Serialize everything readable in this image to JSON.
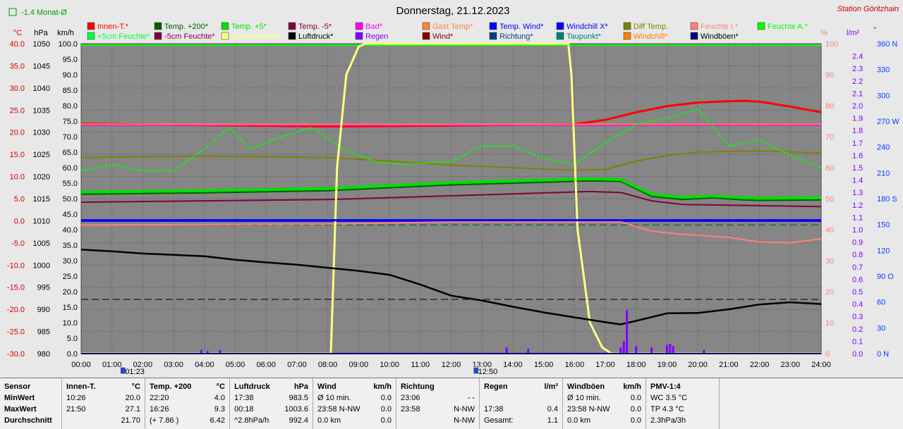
{
  "header": {
    "title": "Donnerstag, 21.12.2023",
    "station": "Station Göritzhain",
    "monat_label": "-1.4 Monat-Ø"
  },
  "axes_units": {
    "celsius": "°C",
    "hpa": "hPa",
    "kmh": "km/h",
    "percent": "%",
    "rain": "l/m²",
    "direction": "°"
  },
  "colors": {
    "background": "#868686",
    "temp_axis": "#d00000",
    "hpa_axis": "#000000",
    "kmh_axis": "#ffffff",
    "percent_axis": "#ff7f7f",
    "rain_axis": "#8000ff",
    "direction_axis": "#0040ff"
  },
  "legend": [
    {
      "label": "Innen-T.*",
      "color": "#ff0000"
    },
    {
      "label": "Temp. +200*",
      "color": "#006000"
    },
    {
      "label": "Temp. +5*",
      "color": "#00e000"
    },
    {
      "label": "Temp. -5*",
      "color": "#800040"
    },
    {
      "label": "Bad*",
      "color": "#ff00ff"
    },
    {
      "label": "Gast Temp*",
      "color": "#ff8040"
    },
    {
      "label": "Temp. Wind*",
      "color": "#0000ff"
    },
    {
      "label": "Windchill X*",
      "color": "#0000ff"
    },
    {
      "label": "Diff Temp.",
      "color": "#808000"
    },
    {
      "label": "Feuchte I.*",
      "color": "#ff8080"
    },
    {
      "label": "Feuchte A.*",
      "color": "#00ff00"
    },
    {
      "label": "+5cm Feuchte*",
      "color": "#00ff40"
    },
    {
      "label": "-5cm Feuchte*",
      "color": "#800040"
    },
    {
      "label": "Sonnenschein*",
      "color": "#ffff80"
    },
    {
      "label": "Luftdruck*",
      "color": "#000000"
    },
    {
      "label": "Regen",
      "color": "#8000ff"
    },
    {
      "label": "Wind*",
      "color": "#800000"
    },
    {
      "label": "Richtung*",
      "color": "#004080"
    },
    {
      "label": "Taupunkt*",
      "color": "#008080"
    },
    {
      "label": "Windchill*",
      "color": "#ff8000"
    },
    {
      "label": "Windböen*",
      "color": "#000080"
    }
  ],
  "chart_data": {
    "type": "line",
    "title": "Donnerstag, 21.12.2023",
    "x_ticks": [
      "00:00",
      "01:00",
      "02:00",
      "03:00",
      "04:00",
      "05:00",
      "06:00",
      "07:00",
      "08:00",
      "09:00",
      "10:00",
      "11:00",
      "12:00",
      "13:00",
      "14:00",
      "15:00",
      "16:00",
      "17:00",
      "18:00",
      "19:00",
      "20:00",
      "21:00",
      "22:00",
      "23:00",
      "24:00"
    ],
    "x_markers": [
      {
        "label": "01:23",
        "time": 1.38
      },
      {
        "label": "12:50",
        "time": 12.83
      }
    ],
    "xlim": [
      0,
      24
    ],
    "temp_axis": {
      "label": "°C",
      "ticks": [
        "40.0",
        "35.0",
        "30.0",
        "25.0",
        "20.0",
        "15.0",
        "10.0",
        "5.0",
        "0.0",
        "-5.0",
        "-10.0",
        "-15.0",
        "-20.0",
        "-25.0",
        "-30.0"
      ],
      "ylim": [
        -30,
        40
      ]
    },
    "hpa_axis": {
      "label": "hPa",
      "ticks": [
        "1050",
        "1045",
        "1040",
        "1035",
        "1030",
        "1025",
        "1020",
        "1015",
        "1010",
        "1005",
        "1000",
        "995",
        "990",
        "985",
        "980"
      ],
      "ylim": [
        980,
        1050
      ]
    },
    "kmh_axis": {
      "label": "km/h",
      "ticks": [
        "100.0",
        "95.0",
        "90.0",
        "85.0",
        "80.0",
        "75.0",
        "70.0",
        "65.0",
        "60.0",
        "55.0",
        "50.0",
        "45.0",
        "40.0",
        "35.0",
        "30.0",
        "25.0",
        "20.0",
        "15.0",
        "10.0",
        "5.0",
        "0.0"
      ],
      "ylim": [
        0,
        100
      ]
    },
    "percent_axis": {
      "label": "%",
      "ticks": [
        "100",
        "90",
        "80",
        "70",
        "60",
        "50",
        "40",
        "30",
        "20",
        "10",
        "0"
      ],
      "ylim": [
        0,
        100
      ]
    },
    "rain_axis": {
      "label": "l/m²",
      "ticks": [
        "2.4",
        "2.3",
        "2.2",
        "2.1",
        "2.0",
        "1.9",
        "1.8",
        "1.7",
        "1.6",
        "1.5",
        "1.4",
        "1.3",
        "1.2",
        "1.1",
        "1.0",
        "0.9",
        "0.8",
        "0.7",
        "0.6",
        "0.5",
        "0.4",
        "0.3",
        "0.2",
        "0.1",
        "0.0"
      ],
      "ylim": [
        0,
        2.5
      ]
    },
    "direction_axis": {
      "label": "°",
      "ticks": [
        "360 N",
        "330",
        "300",
        "270 W",
        "240",
        "210",
        "180 S",
        "150",
        "120",
        "90 O",
        "60",
        "30",
        "0 N"
      ],
      "ylim": [
        0,
        360
      ]
    },
    "series": [
      {
        "name": "Innen-T.*",
        "axis": "temp",
        "color": "#ff0000",
        "x": [
          0,
          4,
          8,
          12,
          16,
          17,
          18,
          19,
          20,
          21,
          21.5,
          22,
          23,
          24
        ],
        "y": [
          21.9,
          21.6,
          21.3,
          21.5,
          21.8,
          22.8,
          24.5,
          25.9,
          26.7,
          27.0,
          27.1,
          26.9,
          25.8,
          24.5
        ]
      },
      {
        "name": "Bad*",
        "axis": "temp",
        "color": "#ff00ff",
        "x": [
          0,
          24
        ],
        "y": [
          21.6,
          21.6
        ]
      },
      {
        "name": "Gast Temp*",
        "axis": "temp",
        "color": "#ff8040",
        "x": [
          0,
          24
        ],
        "y": [
          21.8,
          21.8
        ]
      },
      {
        "name": "Temp. +200*",
        "axis": "temp",
        "color": "#006000",
        "x": [
          0,
          4,
          8,
          12,
          16.5,
          17.5,
          18.5,
          19.5,
          20.5,
          21.5,
          22,
          24
        ],
        "y": [
          6.0,
          6.3,
          6.8,
          8.1,
          9.0,
          8.9,
          5.5,
          4.8,
          5.2,
          4.7,
          4.6,
          4.7
        ]
      },
      {
        "name": "Temp. +5*",
        "axis": "temp",
        "color": "#00e000",
        "x": [
          0,
          4,
          8,
          12,
          16.5,
          17.5,
          18.5,
          19.5,
          20.5,
          21.5,
          22,
          24
        ],
        "y": [
          6.5,
          6.8,
          7.3,
          8.6,
          9.5,
          9.3,
          6.0,
          5.3,
          5.6,
          5.2,
          5.1,
          5.2
        ]
      },
      {
        "name": "Temp. -5*",
        "axis": "temp",
        "color": "#800040",
        "x": [
          0,
          8,
          16.5,
          17.5,
          18.5,
          19.5,
          24
        ],
        "y": [
          4.2,
          4.8,
          6.6,
          6.4,
          4.5,
          3.7,
          3.2
        ]
      },
      {
        "name": "Diff Temp.",
        "axis": "temp",
        "color": "#808000",
        "x": [
          0,
          4,
          8,
          12,
          16,
          17,
          18,
          19,
          20,
          22,
          24
        ],
        "y": [
          14.3,
          14.6,
          14.3,
          12.6,
          11.4,
          11.6,
          13.5,
          14.7,
          15.5,
          15.8,
          15.3
        ]
      },
      {
        "name": "Temp. Wind*",
        "axis": "temp",
        "color": "#0000ff",
        "x": [
          0,
          24
        ],
        "y": [
          0.0,
          0.0
        ]
      },
      {
        "name": "Feuchte A.*",
        "axis": "percent",
        "color": "#00ff00",
        "style": "dotted",
        "x": [
          0,
          1,
          2,
          3,
          4,
          4.8,
          5.5,
          6.5,
          7.5,
          8.5,
          9.5,
          10.5,
          12,
          13,
          14,
          15,
          16,
          17,
          18,
          19,
          20,
          21,
          22,
          23,
          24
        ],
        "y": [
          59,
          61,
          59,
          59,
          66,
          73,
          66,
          70,
          73,
          66,
          62,
          61,
          62,
          67,
          67,
          63,
          61,
          68,
          74,
          76,
          79,
          67,
          69,
          64,
          60
        ]
      },
      {
        "name": "Feuchte I.*",
        "axis": "percent",
        "color": "#ff8080",
        "x": [
          0,
          8,
          12,
          16,
          17.5,
          18.5,
          19.5,
          21,
          22,
          23,
          24
        ],
        "y": [
          41.5,
          41.8,
          42.5,
          42.5,
          42.5,
          39.5,
          38.5,
          37.5,
          36.0,
          35.8,
          37.0
        ]
      },
      {
        "name": "Sonnenschein*",
        "axis": "percent",
        "color": "#ffff80",
        "x": [
          0,
          8.1,
          8.3,
          8.6,
          9.0,
          9.2,
          10,
          15,
          15.8,
          15.9,
          16.1,
          16.5,
          16.9,
          17.2,
          24
        ],
        "y": [
          0,
          0,
          60,
          90,
          99,
          100,
          100,
          100,
          100,
          90,
          40,
          10,
          2,
          0,
          0
        ]
      },
      {
        "name": "Luftdruck*",
        "axis": "hpa",
        "color": "#000000",
        "x": [
          0,
          1,
          2,
          3,
          4,
          5,
          6,
          7,
          8,
          9,
          10,
          11,
          12,
          13,
          14,
          15,
          16,
          17,
          17.5,
          18,
          19,
          20,
          21,
          22,
          23,
          24
        ],
        "y": [
          1003.5,
          1003.1,
          1002.6,
          1002.3,
          1002.0,
          1001.2,
          1000.6,
          1000.1,
          999.4,
          998.7,
          997.8,
          995.6,
          993.1,
          992.0,
          990.6,
          989.3,
          988.2,
          987.1,
          986.6,
          987.4,
          989.1,
          989.2,
          990.0,
          991.1,
          991.6,
          991.2
        ]
      },
      {
        "name": "Regen",
        "axis": "rain",
        "color": "#8000ff",
        "x": [
          3.9,
          4.1,
          4.5,
          13.8,
          14.5,
          17.5,
          17.6,
          17.7,
          18,
          18.5,
          19,
          19.1,
          19.2,
          20.2
        ],
        "y": [
          0.03,
          0.02,
          0.03,
          0.05,
          0.04,
          0.05,
          0.1,
          0.35,
          0.06,
          0.05,
          0.07,
          0.08,
          0.06,
          0.03
        ]
      },
      {
        "name": "Wind*",
        "axis": "kmh",
        "color": "#800000",
        "x": [
          0,
          24
        ],
        "y": [
          0.0,
          0.0
        ]
      },
      {
        "name": "Windböen*",
        "axis": "kmh",
        "color": "#000080",
        "x": [
          0,
          24
        ],
        "y": [
          0.0,
          0.0
        ]
      },
      {
        "name": "Richtung*",
        "axis": "direction",
        "color": "#0000ff",
        "x": [
          0,
          24
        ],
        "y": [
          155,
          155
        ]
      }
    ],
    "reference_lines": [
      {
        "axis": "percent",
        "value": 99.5,
        "color": "#00ff00",
        "style": "solid"
      },
      {
        "axis": "kmh",
        "value": 17.5,
        "color": "#000000",
        "style": "dashed"
      },
      {
        "axis": "percent",
        "value": 41.5,
        "color": "#006000",
        "style": "dashed"
      }
    ]
  },
  "stats": {
    "row_labels": [
      "Sensor",
      "MinWert",
      "MaxWert",
      "Durchschnitt"
    ],
    "columns": [
      {
        "title": "Innen-T.",
        "unit": "°C",
        "rows": [
          [
            "10:26",
            "20.0"
          ],
          [
            "21:50",
            "27.1"
          ],
          [
            "",
            "21.70"
          ]
        ]
      },
      {
        "title": "Temp. +200",
        "unit": "°C",
        "rows": [
          [
            "22:20",
            "4.0"
          ],
          [
            "16:26",
            "9.3"
          ],
          [
            "(+ 7.86 )",
            "6.42"
          ]
        ]
      },
      {
        "title": "Luftdruck",
        "unit": "hPa",
        "rows": [
          [
            "17:38",
            "983.5"
          ],
          [
            "00:18",
            "1003.6"
          ],
          [
            "^2.8hPa/h",
            "992.4"
          ]
        ]
      },
      {
        "title": "Wind",
        "unit": "km/h",
        "rows": [
          [
            "Ø 10 min.",
            "0.0"
          ],
          [
            "23:58   N-NW",
            "0.0"
          ],
          [
            "0.0 km",
            "0.0"
          ]
        ]
      },
      {
        "title": "Richtung",
        "unit": "",
        "rows": [
          [
            "23:06",
            "- -"
          ],
          [
            "23:58",
            "N-NW"
          ],
          [
            "",
            "N-NW"
          ]
        ]
      },
      {
        "title": "Regen",
        "unit": "l/m²",
        "rows": [
          [
            "",
            ""
          ],
          [
            "17:38",
            "0.4"
          ],
          [
            "Gesamt:",
            "1.1"
          ]
        ]
      },
      {
        "title": "Windböen",
        "unit": "km/h",
        "rows": [
          [
            "Ø 10 min.",
            "0.0"
          ],
          [
            "23:58   N-NW",
            "0.0"
          ],
          [
            "0.0 km",
            "0.0"
          ]
        ]
      },
      {
        "title": "PMV-1:4",
        "unit": "",
        "rows": [
          [
            "WC 3.5 °C",
            ""
          ],
          [
            "TP 4.3 °C",
            ""
          ],
          [
            "2.3hPa/3h",
            ""
          ]
        ]
      }
    ]
  }
}
